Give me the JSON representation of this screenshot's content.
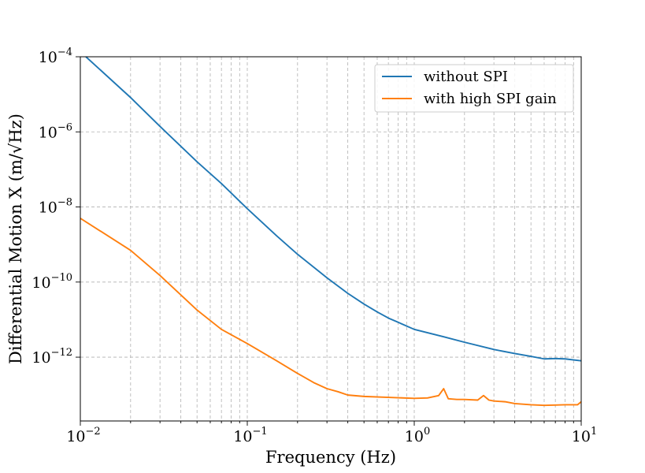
{
  "chart_data": {
    "type": "line",
    "title": "",
    "xlabel": "Frequency (Hz)",
    "ylabel": "Differential Motion X (m/√Hz)",
    "xscale": "log",
    "yscale": "log",
    "xlim": [
      0.01,
      10
    ],
    "ylim": [
      2e-14,
      0.0001
    ],
    "grid": true,
    "legend_position": "top-right",
    "x_ticks": [
      {
        "base": "10",
        "exp": "−2",
        "value": 0.01
      },
      {
        "base": "10",
        "exp": "−1",
        "value": 0.1
      },
      {
        "base": "10",
        "exp": "0",
        "value": 1
      },
      {
        "base": "10",
        "exp": "1",
        "value": 10
      }
    ],
    "y_ticks": [
      {
        "base": "10",
        "exp": "−4",
        "value": 0.0001
      },
      {
        "base": "10",
        "exp": "−6",
        "value": 1e-06
      },
      {
        "base": "10",
        "exp": "−8",
        "value": 1e-08
      },
      {
        "base": "10",
        "exp": "−10",
        "value": 1e-10
      },
      {
        "base": "10",
        "exp": "−12",
        "value": 1e-12
      }
    ],
    "series": [
      {
        "name": "without SPI",
        "color": "#1f77b4",
        "x": [
          0.0108,
          0.02,
          0.03,
          0.05,
          0.07,
          0.1,
          0.15,
          0.2,
          0.3,
          0.4,
          0.5,
          0.6,
          0.7,
          0.8,
          1.0,
          1.5,
          2.0,
          3.0,
          4.0,
          5.0,
          6.0,
          7.0,
          8.0,
          10.0
        ],
        "y": [
          0.0001,
          8.2e-06,
          1.4e-06,
          1.6e-07,
          4.2e-08,
          9e-09,
          1.7e-09,
          5.5e-10,
          1.3e-10,
          5e-11,
          2.6e-11,
          1.6e-11,
          1.1e-11,
          8.5e-12,
          5.5e-12,
          3.5e-12,
          2.5e-12,
          1.6e-12,
          1.25e-12,
          1.05e-12,
          9e-13,
          9.2e-13,
          9e-13,
          8e-13
        ]
      },
      {
        "name": "with high SPI gain",
        "color": "#ff7f0e",
        "x": [
          0.01,
          0.02,
          0.03,
          0.05,
          0.07,
          0.1,
          0.15,
          0.2,
          0.25,
          0.3,
          0.35,
          0.4,
          0.5,
          0.7,
          1.0,
          1.2,
          1.4,
          1.5,
          1.6,
          1.8,
          2.0,
          2.4,
          2.6,
          2.8,
          3.0,
          3.5,
          4.0,
          5.0,
          6.0,
          7.0,
          8.0,
          9.5,
          10.0
        ],
        "y": [
          5e-09,
          7e-10,
          1.5e-10,
          1.8e-11,
          5.5e-12,
          2.3e-12,
          8e-13,
          3.7e-13,
          2.1e-13,
          1.45e-13,
          1.2e-13,
          9.8e-14,
          9e-14,
          8.5e-14,
          8e-14,
          8.2e-14,
          9.5e-14,
          1.45e-13,
          7.8e-14,
          7.5e-14,
          7.5e-14,
          7.2e-14,
          9.5e-14,
          7.2e-14,
          6.8e-14,
          6.5e-14,
          5.8e-14,
          5.4e-14,
          5.2e-14,
          5.3e-14,
          5.4e-14,
          5.4e-14,
          6.5e-14
        ]
      }
    ]
  }
}
